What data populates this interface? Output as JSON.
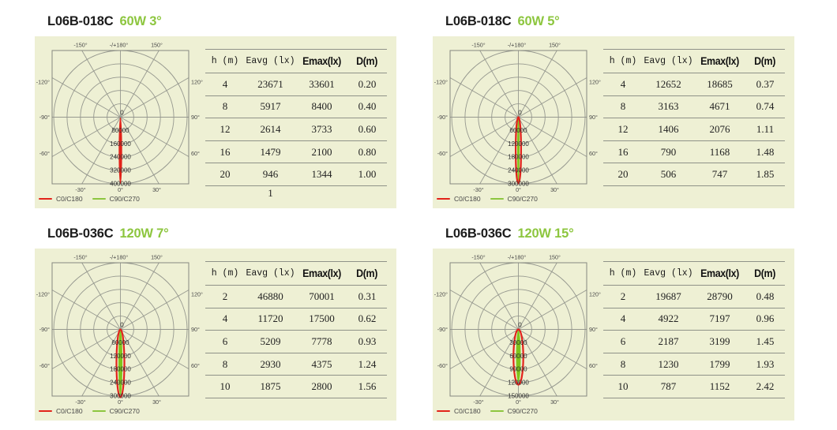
{
  "colors": {
    "accent_green": "#8dc63f",
    "beam_red": "#e2231a",
    "beam_green": "#7fc41c",
    "panel_bg": "#eef0d4",
    "grid_gray": "#96988f",
    "rect_border": "#85877f",
    "table_line": "#8f9288",
    "label_gray": "#4a4a4a",
    "ring_label": "#2e2e2e"
  },
  "legend": {
    "c0": "C0/C180",
    "c90": "C90/C270"
  },
  "table_headers": [
    "h (m)",
    "Eavg (lx)",
    "Emax(lx)",
    "D(m)"
  ],
  "angles": {
    "top": [
      "-150°",
      "-/+180°",
      "150°"
    ],
    "left": [
      "-120°",
      "-90°",
      "-60°"
    ],
    "right": [
      "120°",
      "90°",
      "60°"
    ],
    "bottom": [
      "-30°",
      "0°",
      "30°"
    ]
  },
  "panels": [
    {
      "model": "L06B-018C",
      "spec": "60W 3°",
      "rings": [
        "0",
        "80000",
        "160000",
        "240000",
        "320000",
        "400000"
      ],
      "beam": {
        "style": "filled",
        "red_rx": 2.2,
        "green_rx": 0,
        "length": 85
      },
      "rows": [
        [
          "4",
          "23671",
          "33601",
          "0.20"
        ],
        [
          "8",
          "5917",
          "8400",
          "0.40"
        ],
        [
          "12",
          "2614",
          "3733",
          "0.60"
        ],
        [
          "16",
          "1479",
          "2100",
          "0.80"
        ],
        [
          "20",
          "946",
          "1344",
          "1.00"
        ]
      ],
      "footnote": "1"
    },
    {
      "model": "L06B-018C",
      "spec": "60W 5°",
      "rings": [
        "0",
        "60000",
        "120000",
        "180000",
        "240000",
        "300000"
      ],
      "beam": {
        "style": "outline",
        "red_rx": 3.4,
        "green_rx": 1.5,
        "length": 84
      },
      "rows": [
        [
          "4",
          "12652",
          "18685",
          "0.37"
        ],
        [
          "8",
          "3163",
          "4671",
          "0.74"
        ],
        [
          "12",
          "1406",
          "2076",
          "1.11"
        ],
        [
          "16",
          "790",
          "1168",
          "1.48"
        ],
        [
          "20",
          "506",
          "747",
          "1.85"
        ]
      ]
    },
    {
      "model": "L06B-036C",
      "spec": "120W 7°",
      "rings": [
        "0",
        "60000",
        "120000",
        "180000",
        "240000",
        "300000"
      ],
      "beam": {
        "style": "outline",
        "red_rx": 5,
        "green_rx": 2.6,
        "length": 86
      },
      "rows": [
        [
          "2",
          "46880",
          "70001",
          "0.31"
        ],
        [
          "4",
          "11720",
          "17500",
          "0.62"
        ],
        [
          "6",
          "5209",
          "7778",
          "0.93"
        ],
        [
          "8",
          "2930",
          "4375",
          "1.24"
        ],
        [
          "10",
          "1875",
          "2800",
          "1.56"
        ]
      ]
    },
    {
      "model": "L06B-036C",
      "spec": "120W 15°",
      "rings": [
        "0",
        "30000",
        "60000",
        "90000",
        "120000",
        "150000"
      ],
      "beam": {
        "style": "outline",
        "red_rx": 6.2,
        "green_rx": 3,
        "length": 70
      },
      "rows": [
        [
          "2",
          "19687",
          "28790",
          "0.48"
        ],
        [
          "4",
          "4922",
          "7197",
          "0.96"
        ],
        [
          "6",
          "2187",
          "3199",
          "1.45"
        ],
        [
          "8",
          "1230",
          "1799",
          "1.93"
        ],
        [
          "10",
          "787",
          "1152",
          "2.42"
        ]
      ]
    }
  ],
  "chart_data": [
    {
      "type": "polar",
      "title": "L06B-018C 60W 3°",
      "series": [
        {
          "name": "C0/C180",
          "color": "#e2231a"
        },
        {
          "name": "C90/C270",
          "color": "#7fc41c"
        }
      ],
      "radial_ticks": [
        0,
        80000,
        160000,
        240000,
        320000,
        400000
      ],
      "angle_ticks_deg": [
        -150,
        180,
        150,
        -120,
        120,
        -90,
        90,
        -60,
        60,
        -30,
        0,
        30
      ],
      "beam_peak_estimate_cd": 410000,
      "beam_width_deg": 3
    },
    {
      "type": "polar",
      "title": "L06B-018C 60W 5°",
      "series": [
        {
          "name": "C0/C180",
          "color": "#e2231a"
        },
        {
          "name": "C90/C270",
          "color": "#7fc41c"
        }
      ],
      "radial_ticks": [
        0,
        60000,
        120000,
        180000,
        240000,
        300000
      ],
      "angle_ticks_deg": [
        -150,
        180,
        150,
        -120,
        120,
        -90,
        90,
        -60,
        60,
        -30,
        0,
        30
      ],
      "beam_peak_estimate_cd": 300000,
      "beam_width_deg": 5
    },
    {
      "type": "polar",
      "title": "L06B-036C 120W 7°",
      "series": [
        {
          "name": "C0/C180",
          "color": "#e2231a"
        },
        {
          "name": "C90/C270",
          "color": "#7fc41c"
        }
      ],
      "radial_ticks": [
        0,
        60000,
        120000,
        180000,
        240000,
        300000
      ],
      "angle_ticks_deg": [
        -150,
        180,
        150,
        -120,
        120,
        -90,
        90,
        -60,
        60,
        -30,
        0,
        30
      ],
      "beam_peak_estimate_cd": 305000,
      "beam_width_deg": 7
    },
    {
      "type": "polar",
      "title": "L06B-036C 120W 15°",
      "series": [
        {
          "name": "C0/C180",
          "color": "#e2231a"
        },
        {
          "name": "C90/C270",
          "color": "#7fc41c"
        }
      ],
      "radial_ticks": [
        0,
        30000,
        60000,
        90000,
        120000,
        150000
      ],
      "angle_ticks_deg": [
        -150,
        180,
        150,
        -120,
        120,
        -90,
        90,
        -60,
        60,
        -30,
        0,
        30
      ],
      "beam_peak_estimate_cd": 123000,
      "beam_width_deg": 15
    }
  ]
}
